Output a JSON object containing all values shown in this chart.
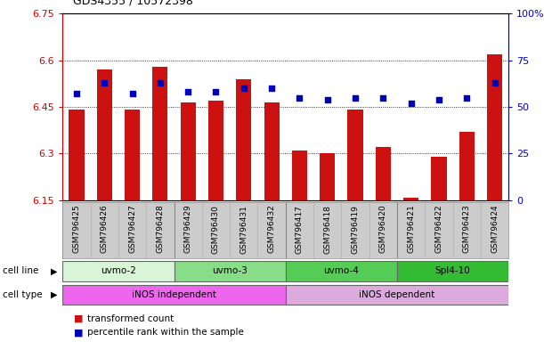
{
  "title": "GDS4355 / 10572398",
  "samples": [
    "GSM796425",
    "GSM796426",
    "GSM796427",
    "GSM796428",
    "GSM796429",
    "GSM796430",
    "GSM796431",
    "GSM796432",
    "GSM796417",
    "GSM796418",
    "GSM796419",
    "GSM796420",
    "GSM796421",
    "GSM796422",
    "GSM796423",
    "GSM796424"
  ],
  "transformed_count": [
    6.44,
    6.57,
    6.44,
    6.58,
    6.465,
    6.47,
    6.54,
    6.465,
    6.31,
    6.3,
    6.44,
    6.32,
    6.158,
    6.29,
    6.37,
    6.62
  ],
  "percentile_rank": [
    57,
    63,
    57,
    63,
    58,
    58,
    60,
    60,
    55,
    54,
    55,
    55,
    52,
    54,
    55,
    63
  ],
  "y_min": 6.15,
  "y_max": 6.75,
  "y_ticks": [
    6.15,
    6.3,
    6.45,
    6.6,
    6.75
  ],
  "y_tick_labels": [
    "6.15",
    "6.3",
    "6.45",
    "6.6",
    "6.75"
  ],
  "right_y_ticks": [
    0,
    25,
    50,
    75,
    100
  ],
  "right_y_labels": [
    "0",
    "25",
    "50",
    "75",
    "100%"
  ],
  "bar_color": "#cc1111",
  "dot_color": "#0000bb",
  "cell_lines": [
    {
      "label": "uvmo-2",
      "start": 0,
      "end": 4,
      "color": "#d8f5d8"
    },
    {
      "label": "uvmo-3",
      "start": 4,
      "end": 8,
      "color": "#88dd88"
    },
    {
      "label": "uvmo-4",
      "start": 8,
      "end": 12,
      "color": "#55cc55"
    },
    {
      "label": "Spl4-10",
      "start": 12,
      "end": 16,
      "color": "#33bb33"
    }
  ],
  "cell_types": [
    {
      "label": "iNOS independent",
      "start": 0,
      "end": 8,
      "color": "#ee66ee"
    },
    {
      "label": "iNOS dependent",
      "start": 8,
      "end": 16,
      "color": "#ddaadd"
    }
  ],
  "legend_bar_label": "transformed count",
  "legend_dot_label": "percentile rank within the sample",
  "bg_color": "#ffffff",
  "plot_bg": "#ffffff",
  "title_color": "#000000",
  "left_axis_color": "#cc0000",
  "right_axis_color": "#0000cc",
  "tick_label_color_left": "#cc0000",
  "tick_label_color_right": "#0000cc",
  "label_area_color": "#cccccc",
  "cell_line_row_label": "cell line",
  "cell_type_row_label": "cell type"
}
